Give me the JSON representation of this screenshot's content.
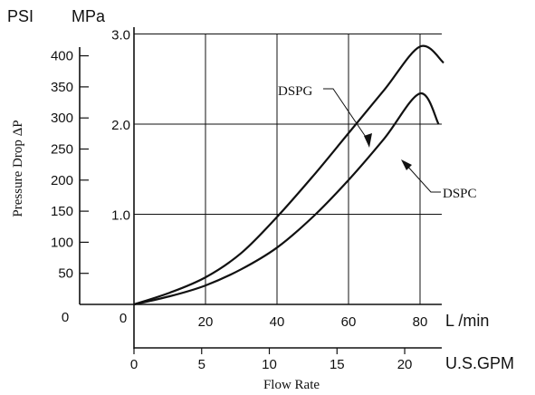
{
  "chart_data": {
    "type": "line",
    "title": "",
    "xlabel": "Flow Rate",
    "ylabel": "Pressure Drop ΔP",
    "x_primary": {
      "unit": "L /min",
      "range": [
        0,
        85
      ],
      "ticks": [
        0,
        20,
        40,
        60,
        80
      ]
    },
    "x_secondary": {
      "unit": "U.S.GPM",
      "ticks": [
        0,
        5,
        10,
        15,
        20
      ]
    },
    "y_primary": {
      "unit": "MPa",
      "range": [
        0,
        3.0
      ],
      "ticks": [
        1.0,
        2.0,
        3.0
      ]
    },
    "y_secondary": {
      "unit": "PSI",
      "ticks": [
        50,
        100,
        150,
        200,
        250,
        300,
        350,
        400
      ]
    },
    "origin_labels": {
      "psi": "0",
      "mpa": "0"
    },
    "grid": true,
    "series": [
      {
        "name": "DSPG",
        "x": [
          0,
          10,
          20,
          30,
          40,
          50,
          60,
          70,
          80,
          85
        ],
        "y": [
          0,
          0.13,
          0.3,
          0.57,
          0.97,
          1.42,
          1.9,
          2.38,
          2.86,
          2.68
        ]
      },
      {
        "name": "DSPC",
        "x": [
          0,
          10,
          20,
          30,
          40,
          50,
          60,
          70,
          80,
          85
        ],
        "y": [
          0,
          0.09,
          0.21,
          0.39,
          0.63,
          0.97,
          1.38,
          1.84,
          2.34,
          2.0
        ]
      }
    ]
  }
}
